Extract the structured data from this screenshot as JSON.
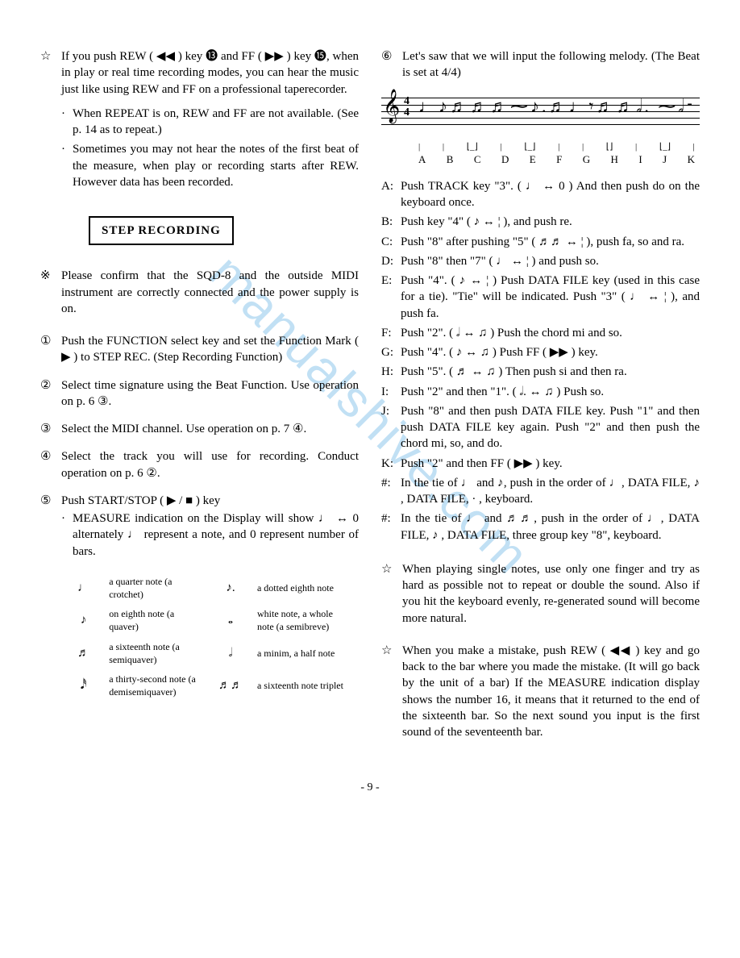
{
  "watermark": "manualshive.com",
  "page_number": "- 9 -",
  "left": {
    "star_marker": "☆",
    "intro": "If you push REW ( ◀◀ ) key ⓭ and FF ( ▶▶ ) key ⓯, when in play or real time recording modes, you can hear the music just like using REW and FF on a professional taperecorder.",
    "intro_bullets": [
      "When REPEAT is on, REW and FF are not available. (See p. 14 as to repeat.)",
      "Sometimes you may not hear the notes of the first beat of the measure, when play or recording starts after REW.  However data has been recorded."
    ],
    "section_title": "STEP RECORDING",
    "pre_marker": "※",
    "pre_text": "Please confirm that the SQD-8 and the outside MIDI instrument are correctly connected and the power supply is on.",
    "steps": [
      {
        "num": "①",
        "text": "Push the FUNCTION select key and set the Function Mark ( ▶ ) to STEP REC.  (Step Recording Function)"
      },
      {
        "num": "②",
        "text": "Select time signature using the Beat Function.  Use operation on p. 6 ③."
      },
      {
        "num": "③",
        "text": "Select the MIDI channel.  Use operation on p. 7 ④."
      },
      {
        "num": "④",
        "text": "Select the track you will use for recording.  Conduct operation on p. 6 ②."
      },
      {
        "num": "⑤",
        "text": "Push START/STOP (  ▶ / ■  ) key",
        "sub": "MEASURE indication on the Display will show ♩ ↔ 0 alternately ♩ represent a note, and 0 represent number of bars."
      }
    ],
    "note_table": [
      {
        "sym1": "♩",
        "desc1": "a quarter note (a crotchet)",
        "sym2": "♪.",
        "desc2": "a dotted eighth note"
      },
      {
        "sym1": "♪",
        "desc1": "on eighth note (a quaver)",
        "sym2": "𝅝",
        "desc2": "white note, a whole note (a semibreve)"
      },
      {
        "sym1": "♬",
        "desc1": "a sixteenth note (a semiquaver)",
        "sym2": "𝅗𝅥",
        "desc2": "a minim, a half note"
      },
      {
        "sym1": "𝅘𝅥𝅰",
        "desc1": "a thirty-second note (a demisemiquaver)",
        "sym2": "♬♬",
        "desc2": "a sixteenth note triplet"
      }
    ]
  },
  "right": {
    "step6_num": "⑥",
    "step6_text": "Let's saw that we will input the following melody. (The Beat is set at 4/4)",
    "staff_labels": [
      "A",
      "B",
      "C",
      "D",
      "E",
      "F",
      "G",
      "H",
      "I",
      "J",
      "K"
    ],
    "instructions": [
      {
        "label": "A:",
        "text": "Push TRACK key \"3\".  ( ♩ ↔ 0 )  And then push do on the keyboard once."
      },
      {
        "label": "B:",
        "text": "Push key \"4\" ( ♪ ↔ ¦ ), and push re."
      },
      {
        "label": "C:",
        "text": "Push \"8\" after pushing \"5\" ( ♬♬ ↔ ¦ ), push fa, so and ra."
      },
      {
        "label": "D:",
        "text": "Push \"8\" then \"7\" ( ♩ ↔ ¦ ) and push so."
      },
      {
        "label": "E:",
        "text": "Push \"4\".  ( ♪ ↔ ¦ ) Push DATA FILE key (used in this case for a tie).  \"Tie\" will be indicated. Push \"3\" ( ♩ ↔ ¦ ), and push fa."
      },
      {
        "label": "F:",
        "text": "Push \"2\".  ( 𝅗𝅥 ↔ ♫ ) Push the chord mi and so."
      },
      {
        "label": "G:",
        "text": "Push \"4\".  ( ♪ ↔ ♫ ) Push FF ( ▶▶ ) key."
      },
      {
        "label": "H:",
        "text": "Push \"5\".  ( ♬ ↔ ♫ ) Then push si and then ra."
      },
      {
        "label": "I:",
        "text": "Push \"2\" and then \"1\". ( 𝅗𝅥. ↔ ♫ ) Push so."
      },
      {
        "label": "J:",
        "text": "Push \"8\" and then push DATA FILE key. Push \"1\" and then push DATA FILE key again. Push \"2\" and then push the chord mi, so, and do."
      },
      {
        "label": "K:",
        "text": "Push \"2\" and then FF ( ▶▶ ) key."
      },
      {
        "label": "#:",
        "text": "In the tie of ♩ and ♪, push in the order of ♩, DATA FILE, ♪ , DATA FILE,  · , keyboard."
      },
      {
        "label": "#:",
        "text": "In the tie of ♩ and ♬♬, push in the order of ♩, DATA FILE,  ♪ , DATA FILE, three group key \"8\", keyboard."
      }
    ],
    "tip1_marker": "☆",
    "tip1": "When playing single notes, use only one finger and try as hard as possible not to repeat or double the sound.  Also if you hit the keyboard evenly, re-generated sound will become more natural.",
    "tip2_marker": "☆",
    "tip2": "When you make a mistake, push REW ( ◀◀ ) key and go back to the bar where you made the mistake. (It will go back by the unit of a bar)  If the MEASURE indication display shows the number 16, it means that it returned to the end of the sixteenth bar.  So the next sound you input is the first sound of the seventeenth bar."
  }
}
